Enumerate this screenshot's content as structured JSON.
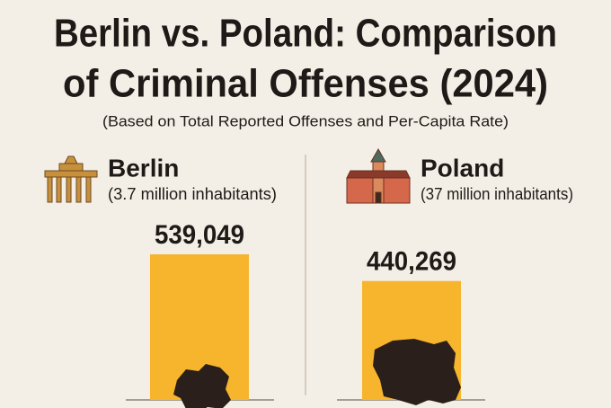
{
  "chart_data": {
    "type": "bar",
    "title": [
      "Berlin vs. Poland: Comparison",
      "of Criminal Offenses (2024)"
    ],
    "subtitle": "(Based on Total Reported Offenses and Per-Capita Rate)",
    "categories": [
      "Berlin",
      "Poland"
    ],
    "category_notes": [
      "(3.7 million inhabitants)",
      "(37 million inhabitants)"
    ],
    "values": [
      539049,
      440269
    ],
    "value_labels": [
      "539,049",
      "440,269"
    ],
    "color": "#f6b52c"
  }
}
